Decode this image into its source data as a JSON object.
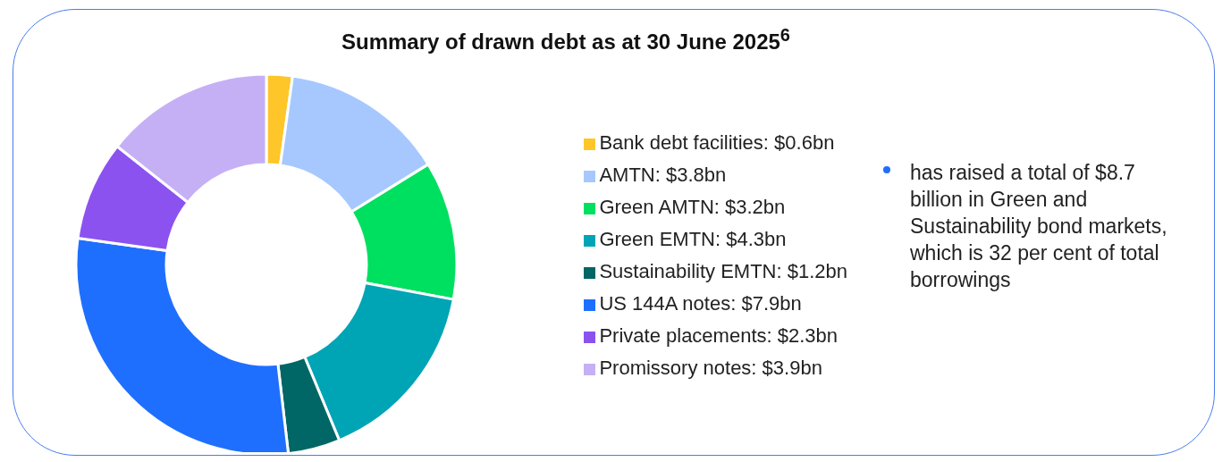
{
  "chart_data": {
    "type": "donut",
    "title": "Summary of drawn debt as at 30 June 2025$^{6}$",
    "categories": [
      "Bank debt facilities: $0.6bn",
      "AMTN: $3.8bn",
      "Green AMTN: $3.2bn",
      "Green EMTN: $4.3bn",
      "Sustainability EMTN: $1.2bn",
      "US 144A notes: $7.9bn",
      "Private placements: $2.3bn",
      "Promissory notes: $3.9bn"
    ],
    "values": [
      0.6,
      3.8,
      3.2,
      4.3,
      1.2,
      7.9,
      2.3,
      3.9
    ],
    "colors": [
      "#ffc629",
      "#a6c8ff",
      "#00e060",
      "#00a5b5",
      "#006666",
      "#1f6fff",
      "#8c52f0",
      "#c5b0f5"
    ],
    "legend": "right",
    "annotations": [
      "has raised a total of $8.7 billion in Green and Sustainability bond markets, which is 32 per cent of total borrowings"
    ]
  }
}
